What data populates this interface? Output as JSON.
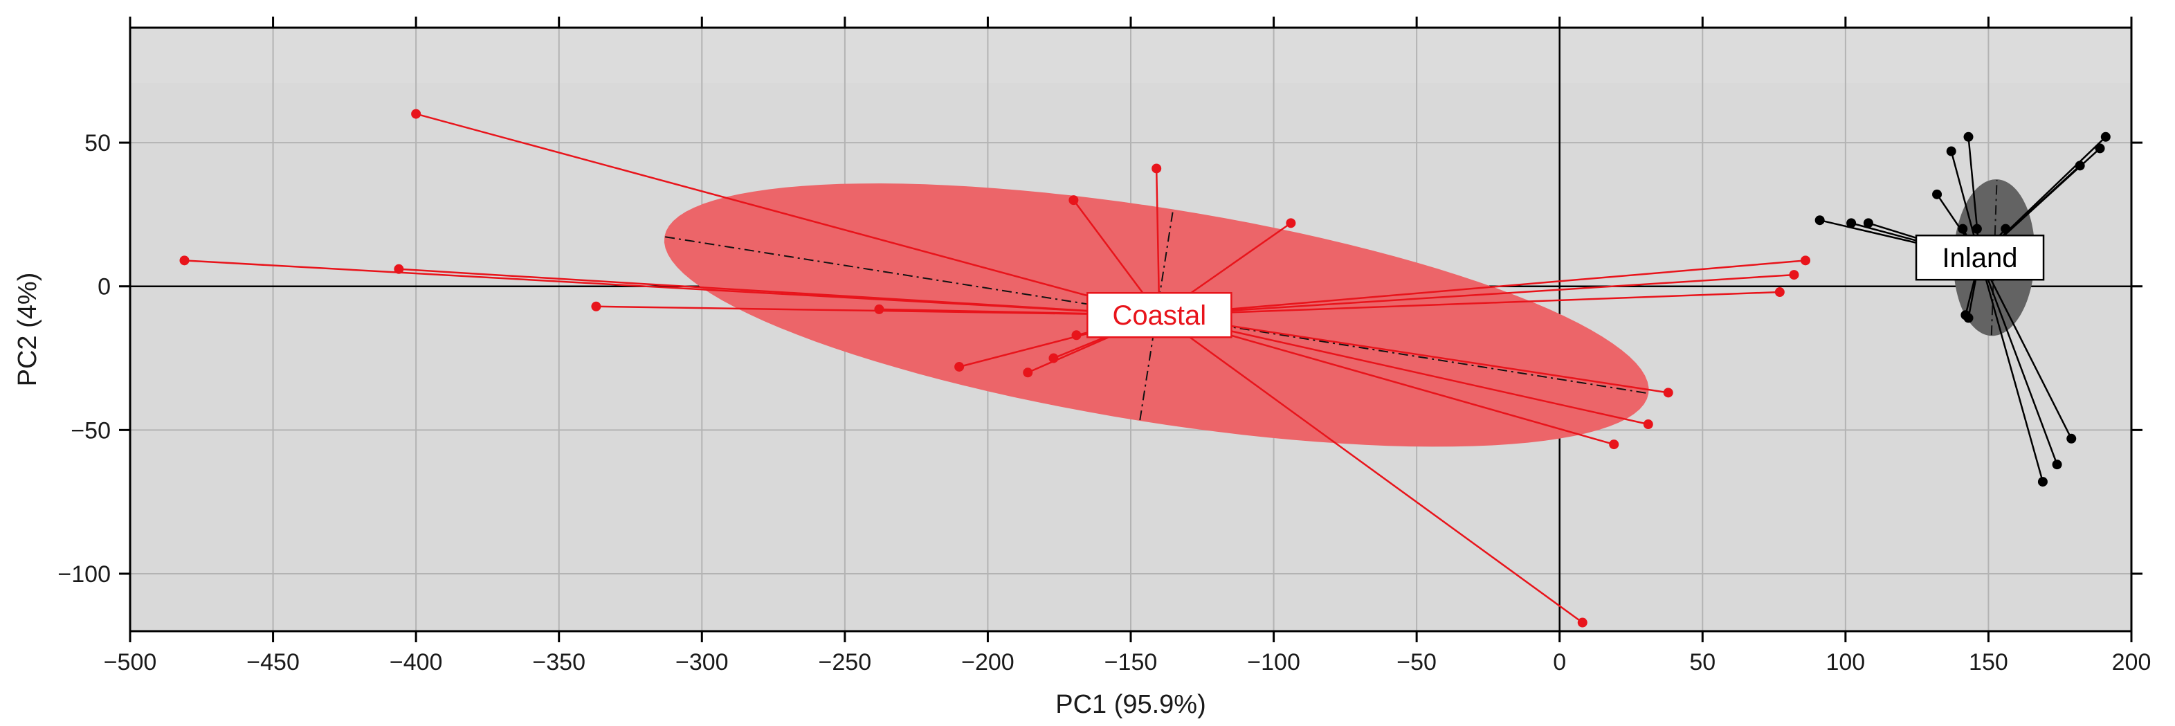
{
  "chart_data": {
    "type": "scatter",
    "title": "",
    "xlabel": "PC1 (95.9%)",
    "ylabel": "PC2 (4%)",
    "xlim": [
      -500,
      200
    ],
    "ylim": [
      -120,
      90
    ],
    "x_ticks": [
      -500,
      -450,
      -400,
      -350,
      -300,
      -250,
      -200,
      -150,
      -100,
      -50,
      0,
      50,
      100,
      150,
      200
    ],
    "x_tick_labels": [
      "−500",
      "−450",
      "−400",
      "−350",
      "−300",
      "−250",
      "−200",
      "−150",
      "−100",
      "−50",
      "0",
      "50",
      "100",
      "150",
      "200"
    ],
    "y_ticks": [
      -100,
      -50,
      0,
      50
    ],
    "y_tick_labels": [
      "−100",
      "−50",
      "0",
      "50"
    ],
    "grid": true,
    "background_color": "#d9d9d9",
    "series": [
      {
        "name": "Coastal",
        "color": "#e8141b",
        "ellipse_fill": "#ec6569",
        "centroid": [
          -140,
          -10
        ],
        "ellipse": {
          "center": [
            -141,
            -10
          ],
          "major_radius": 174,
          "minor_radius": 37,
          "angle_deg": -9
        },
        "points": [
          [
            -481,
            9
          ],
          [
            -406,
            6
          ],
          [
            -400,
            60
          ],
          [
            -337,
            -7
          ],
          [
            -238,
            -8
          ],
          [
            -210,
            -28
          ],
          [
            -186,
            -30
          ],
          [
            -177,
            -25
          ],
          [
            -169,
            -17
          ],
          [
            -170,
            30
          ],
          [
            -141,
            41
          ],
          [
            -94,
            22
          ],
          [
            8,
            -117
          ],
          [
            19,
            -55
          ],
          [
            31,
            -48
          ],
          [
            38,
            -37
          ],
          [
            77,
            -2
          ],
          [
            82,
            4
          ],
          [
            86,
            9
          ]
        ]
      },
      {
        "name": "Inland",
        "color": "#000000",
        "ellipse_fill": "#636363",
        "centroid": [
          147,
          10
        ],
        "ellipse": {
          "center": [
            152,
            10
          ],
          "major_radius": 27,
          "minor_radius": 14,
          "angle_deg": 88
        },
        "points": [
          [
            91,
            23
          ],
          [
            102,
            22
          ],
          [
            108,
            22
          ],
          [
            132,
            32
          ],
          [
            137,
            47
          ],
          [
            141,
            20
          ],
          [
            142,
            -10
          ],
          [
            143,
            -11
          ],
          [
            143,
            52
          ],
          [
            146,
            20
          ],
          [
            156,
            20
          ],
          [
            169,
            -68
          ],
          [
            174,
            -62
          ],
          [
            179,
            -53
          ],
          [
            182,
            42
          ],
          [
            189,
            48
          ],
          [
            191,
            52
          ]
        ]
      }
    ]
  }
}
